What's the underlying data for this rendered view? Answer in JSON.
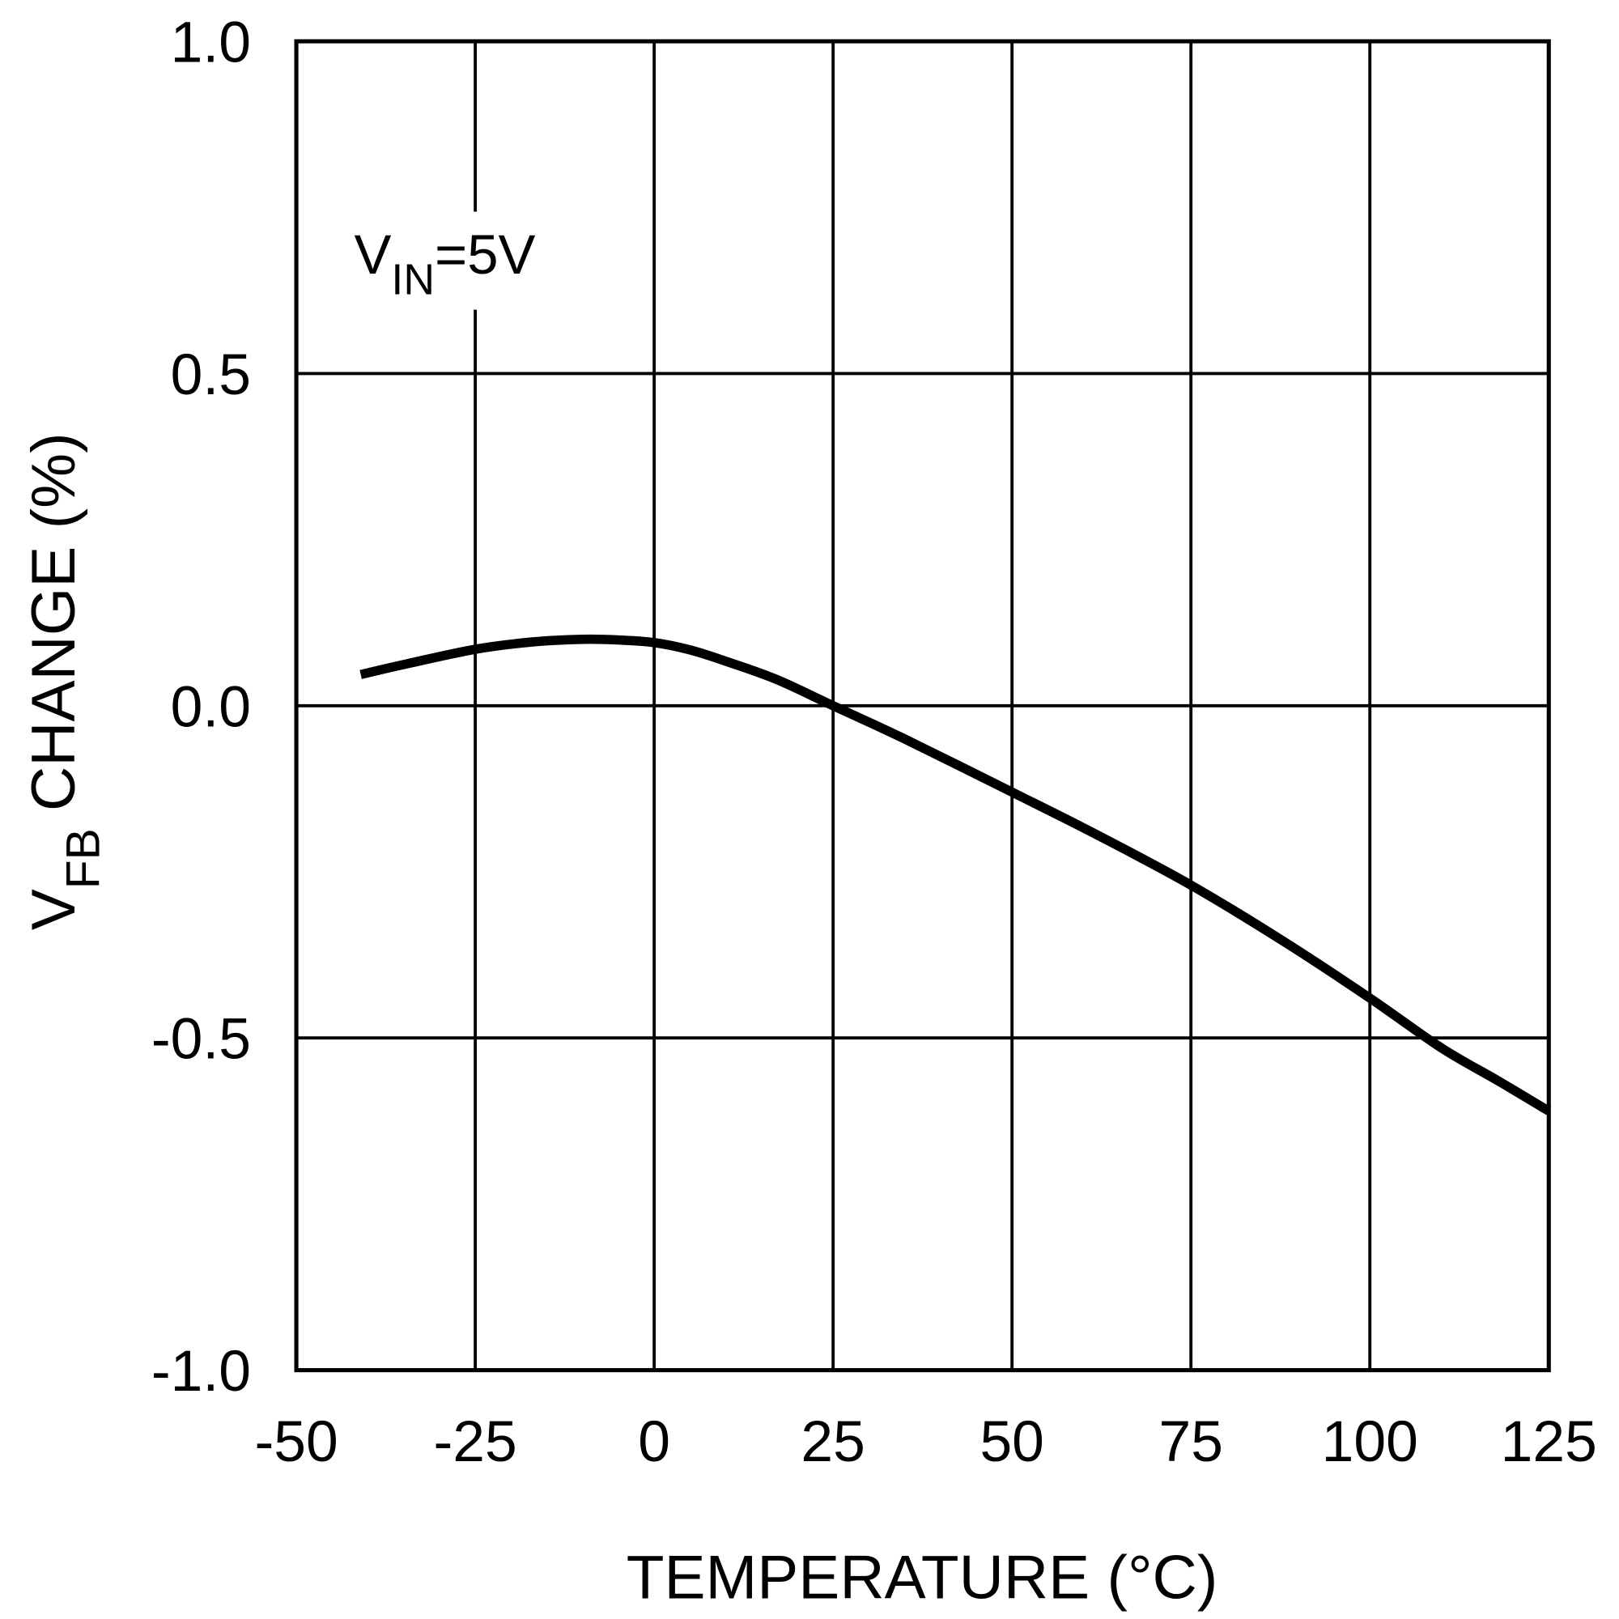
{
  "chart_data": {
    "type": "line",
    "title": "",
    "xlabel": "TEMPERATURE (°C)",
    "ylabel": {
      "main": "V",
      "sub": "FB",
      "rest": " CHANGE (%)"
    },
    "xlim": [
      -50,
      125
    ],
    "ylim": [
      -1.0,
      1.0
    ],
    "xticks": [
      "-50",
      "-25",
      "0",
      "25",
      "50",
      "75",
      "100",
      "125"
    ],
    "xtick_values": [
      -50,
      -25,
      0,
      25,
      50,
      75,
      100,
      125
    ],
    "yticks": [
      "1.0",
      "0.5",
      "0.0",
      "-0.5",
      "-1.0"
    ],
    "ytick_values": [
      1.0,
      0.5,
      0.0,
      -0.5,
      -1.0
    ],
    "grid": true,
    "annotation": {
      "main": "V",
      "sub": "IN",
      "rest": "=5V"
    },
    "series": [
      {
        "color": "#000000",
        "x": [
          -41,
          -35,
          -25,
          -17,
          -10,
          -5,
          0,
          5,
          10,
          17,
          25,
          35,
          50,
          62,
          75,
          88,
          100,
          110,
          118,
          125
        ],
        "y": [
          0.047,
          0.062,
          0.085,
          0.096,
          0.1,
          0.099,
          0.095,
          0.084,
          0.067,
          0.04,
          0.0,
          -0.05,
          -0.13,
          -0.195,
          -0.27,
          -0.355,
          -0.44,
          -0.515,
          -0.565,
          -0.61
        ]
      }
    ]
  }
}
